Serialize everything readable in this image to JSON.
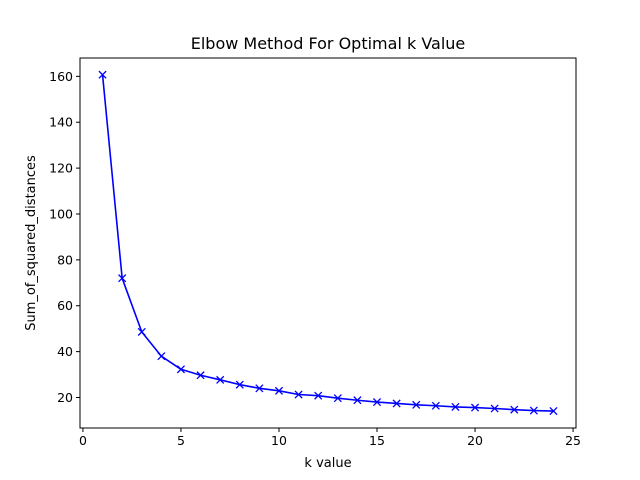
{
  "chart_data": {
    "type": "line",
    "title": "Elbow Method For Optimal k Value",
    "xlabel": "k value",
    "ylabel": "Sum_of_squared_distances",
    "xlim": [
      -0.15,
      25.15
    ],
    "ylim": [
      6.7,
      168.0
    ],
    "xticks": [
      0,
      5,
      10,
      15,
      20,
      25
    ],
    "yticks": [
      20,
      40,
      60,
      80,
      100,
      120,
      140,
      160
    ],
    "grid": false,
    "marker": "x",
    "color": "#0000ff",
    "x": [
      1,
      2,
      3,
      4,
      5,
      6,
      7,
      8,
      9,
      10,
      11,
      12,
      13,
      14,
      15,
      16,
      17,
      18,
      19,
      20,
      21,
      22,
      23,
      24
    ],
    "values": [
      160.7,
      72.0,
      48.6,
      38.0,
      32.3,
      29.7,
      27.7,
      25.6,
      24.0,
      22.9,
      21.3,
      20.8,
      19.7,
      18.8,
      18.0,
      17.4,
      16.8,
      16.4,
      15.9,
      15.6,
      15.2,
      14.7,
      14.3,
      14.1
    ]
  }
}
